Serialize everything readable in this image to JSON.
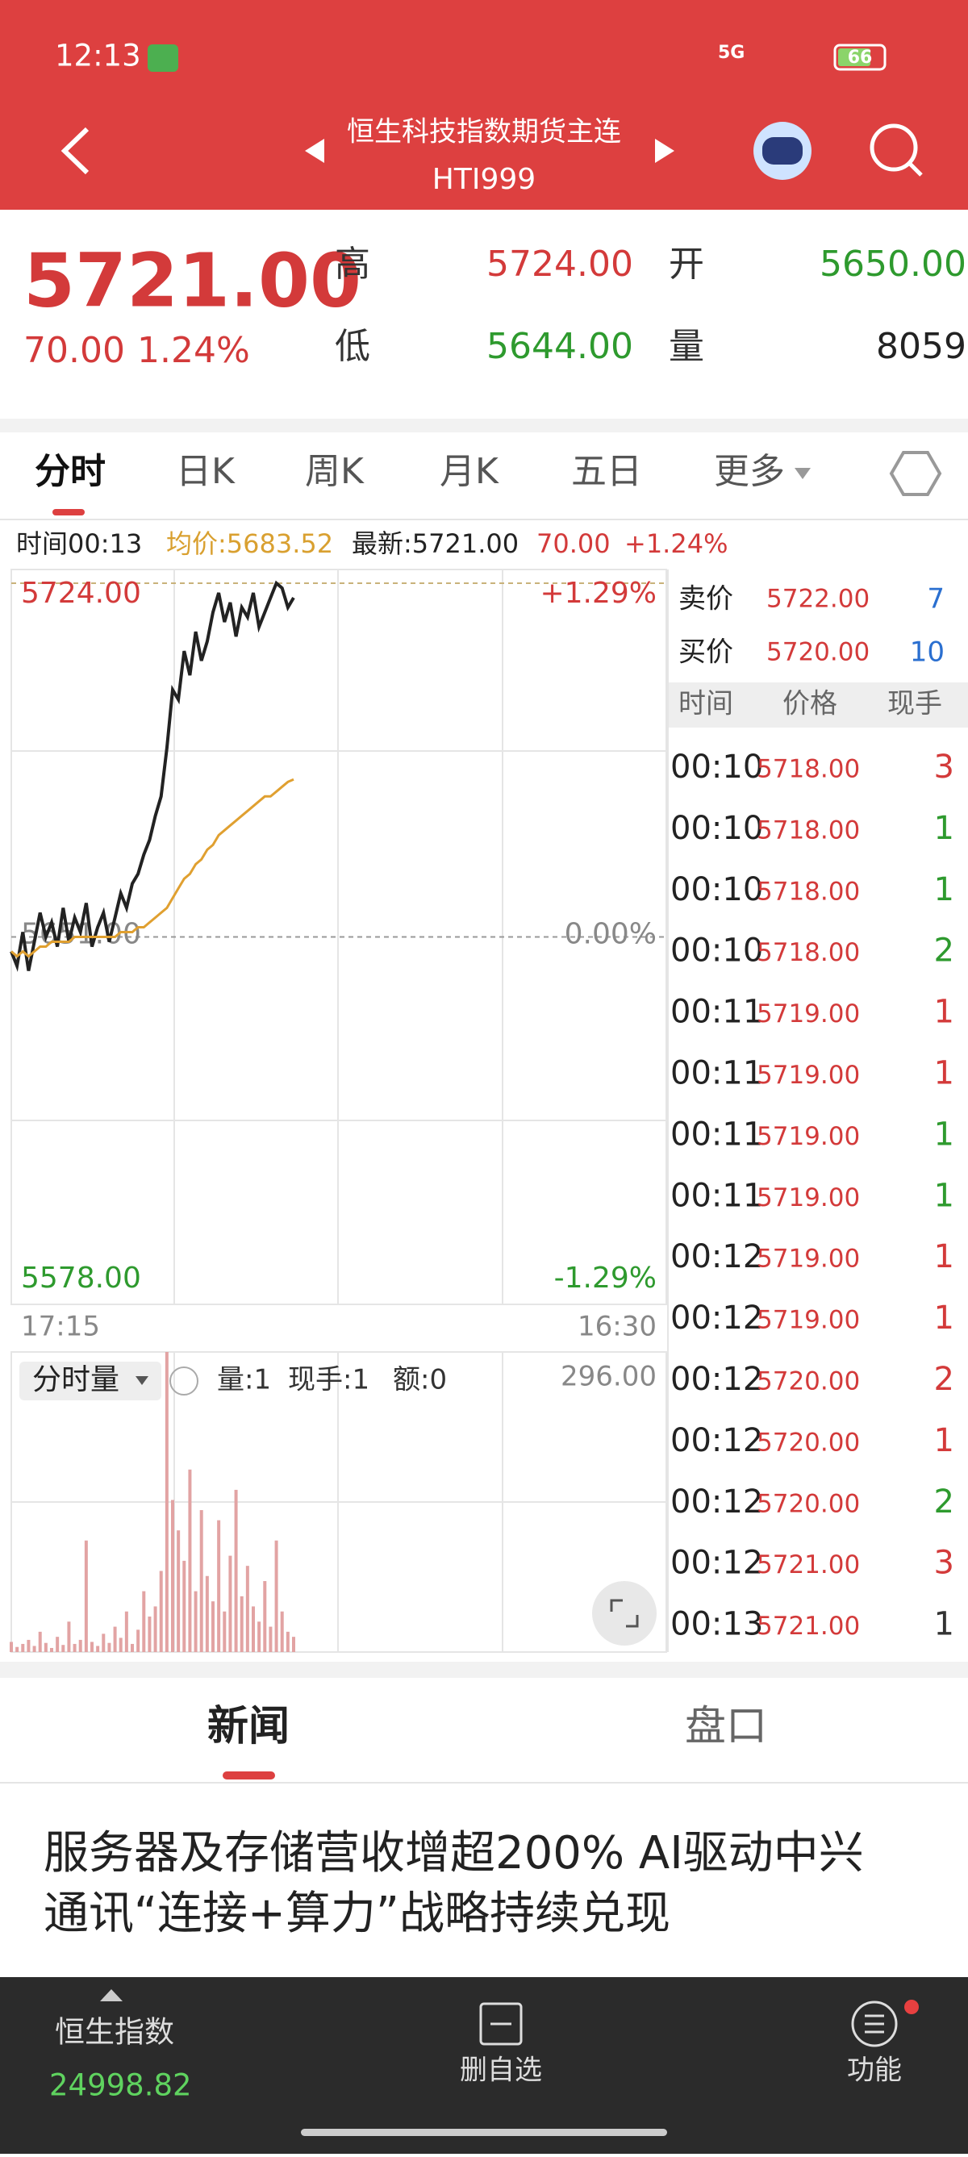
{
  "status_bar": {
    "time": "12:13",
    "network": "5G",
    "battery": "66"
  },
  "header": {
    "title": "恒生科技指数期货主连",
    "code": "HTI999"
  },
  "quote": {
    "price": "5721.00",
    "change": "70.00",
    "change_pct": "1.24%",
    "high_label": "高",
    "high": "5724.00",
    "open_label": "开",
    "open": "5650.00",
    "low_label": "低",
    "low": "5644.00",
    "volume_label": "量",
    "volume": "8059"
  },
  "tabs": [
    "分时",
    "日K",
    "周K",
    "月K",
    "五日",
    "更多"
  ],
  "info_bar": {
    "time": "时间00:13",
    "avg": "均价:5683.52",
    "latest": "最新:5721.00",
    "change": "70.00",
    "change_pct": "+1.24%"
  },
  "chart_data": [
    {
      "type": "line",
      "ylim": [
        5578,
        5724
      ],
      "yticks": [
        {
          "value": 5724,
          "label": "5724.00"
        },
        {
          "value": 5651,
          "label": "5651.00"
        },
        {
          "value": 5578,
          "label": "5578.00"
        }
      ],
      "y2lim": [
        -1.29,
        1.29
      ],
      "y2ticks": [
        {
          "value": 1.29,
          "label": "+1.29%"
        },
        {
          "value": 0,
          "label": "0.00%"
        },
        {
          "value": -1.29,
          "label": "-1.29%"
        }
      ],
      "x_labels": [
        "17:15",
        "16:30"
      ],
      "series": [
        {
          "color": "#222222",
          "values": [
            5648,
            5645,
            5652,
            5644,
            5650,
            5656,
            5651,
            5654,
            5649,
            5657,
            5650,
            5655,
            5652,
            5658,
            5649,
            5653,
            5656,
            5650,
            5655,
            5660,
            5657,
            5662,
            5664,
            5668,
            5671,
            5676,
            5680,
            5690,
            5702,
            5700,
            5710,
            5705,
            5714,
            5708,
            5712,
            5718,
            5722,
            5716,
            5720,
            5713,
            5719,
            5717,
            5722,
            5715,
            5718,
            5721,
            5724,
            5723,
            5719,
            5721
          ]
        },
        {
          "color": "#e0a030",
          "values": [
            5648,
            5647,
            5648,
            5647,
            5648,
            5649,
            5649,
            5650,
            5650,
            5650,
            5650,
            5651,
            5651,
            5651,
            5651,
            5651,
            5651,
            5651,
            5651,
            5652,
            5652,
            5652,
            5653,
            5653,
            5654,
            5655,
            5656,
            5657,
            5659,
            5661,
            5663,
            5664,
            5666,
            5667,
            5669,
            5670,
            5672,
            5673,
            5674,
            5675,
            5676,
            5677,
            5678,
            5679,
            5680,
            5680,
            5681,
            5682,
            5683,
            5683.5
          ]
        }
      ]
    },
    {
      "type": "bar",
      "title": "分时量",
      "readouts": [
        "量:1",
        "现手:1",
        "额:0"
      ],
      "ylim": [
        0,
        296
      ],
      "yticks": [
        {
          "value": 296,
          "label": "296.00"
        }
      ],
      "color": "#e2a3a3",
      "values": [
        10,
        5,
        8,
        12,
        6,
        20,
        9,
        4,
        15,
        7,
        30,
        8,
        12,
        110,
        10,
        6,
        18,
        9,
        25,
        14,
        40,
        8,
        22,
        60,
        35,
        45,
        80,
        296,
        150,
        120,
        90,
        180,
        60,
        140,
        75,
        50,
        130,
        40,
        95,
        160,
        55,
        85,
        45,
        30,
        70,
        25,
        110,
        40,
        20,
        15
      ]
    }
  ],
  "order_book": {
    "ask_label": "卖价",
    "ask": "5722.00",
    "ask_qty": "7",
    "bid_label": "买价",
    "bid": "5720.00",
    "bid_qty": "10",
    "columns": [
      "时间",
      "价格",
      "现手"
    ],
    "trades": [
      [
        "00:10",
        "5718.00",
        "3"
      ],
      [
        "00:10",
        "5718.00",
        "1"
      ],
      [
        "00:10",
        "5718.00",
        "1"
      ],
      [
        "00:10",
        "5718.00",
        "2"
      ],
      [
        "00:11",
        "5719.00",
        "1"
      ],
      [
        "00:11",
        "5719.00",
        "1"
      ],
      [
        "00:11",
        "5719.00",
        "1"
      ],
      [
        "00:11",
        "5719.00",
        "1"
      ],
      [
        "00:12",
        "5719.00",
        "1"
      ],
      [
        "00:12",
        "5719.00",
        "1"
      ],
      [
        "00:12",
        "5720.00",
        "2"
      ],
      [
        "00:12",
        "5720.00",
        "1"
      ],
      [
        "00:12",
        "5720.00",
        "2"
      ],
      [
        "00:12",
        "5721.00",
        "3"
      ],
      [
        "00:13",
        "5721.00",
        "1"
      ]
    ],
    "trade_colors": [
      "#d33a3a",
      "#2e9a2e",
      "#2e9a2e",
      "#2e9a2e",
      "#d33a3a",
      "#d33a3a",
      "#2e9a2e",
      "#2e9a2e",
      "#d33a3a",
      "#d33a3a",
      "#d33a3a",
      "#d33a3a",
      "#2e9a2e",
      "#d33a3a",
      "#333333"
    ]
  },
  "news_tabs": [
    "新闻",
    "盘口"
  ],
  "headline": [
    "服务器及存储营收增超200% AI驱动中兴",
    "通讯“连接+算力”战略持续兑现"
  ],
  "bottom_bar": {
    "index_name": "恒生指数",
    "index_value": "24998.82",
    "watchlist": "删自选",
    "functions": "功能"
  }
}
